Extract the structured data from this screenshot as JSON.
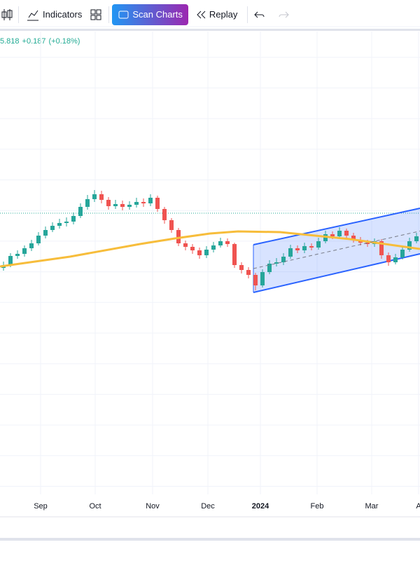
{
  "toolbar": {
    "indicators": "Indicators",
    "scan": "Scan Charts",
    "replay": "Replay"
  },
  "legend": {
    "price": "5.818",
    "change": "+0.187",
    "change_pct": "(+0.18%)"
  },
  "chart_data": {
    "type": "candlestick",
    "xlim": [
      0,
      60
    ],
    "ylim": [
      0,
      65.5
    ],
    "xticks": [
      {
        "value": 5.8,
        "label": "Sep"
      },
      {
        "value": 13.6,
        "label": "Oct"
      },
      {
        "value": 21.8,
        "label": "Nov"
      },
      {
        "value": 29.7,
        "label": "Dec"
      },
      {
        "value": 37.2,
        "label": "2024"
      },
      {
        "value": 45.3,
        "label": "Feb"
      },
      {
        "value": 53.1,
        "label": "Mar"
      },
      {
        "value": 59.8,
        "label": "A"
      }
    ],
    "up_color": "#26a69a",
    "down_color": "#ef5350",
    "open": [
      31.8,
      32.2,
      33.5,
      33.8,
      34.6,
      35.3,
      36.4,
      37.2,
      37.8,
      38.2,
      38.4,
      39.2,
      40.5,
      41.6,
      42.3,
      41.5,
      40.6,
      40.9,
      40.5,
      40.8,
      41.2,
      41.0,
      41.8,
      40.2,
      38.6,
      37.2,
      35.3,
      34.8,
      34.3,
      33.6,
      34.4,
      35.0,
      35.6,
      35.2,
      32.2,
      31.5,
      30.8,
      29.3,
      31.2,
      32.4,
      32.6,
      33.4,
      34.6,
      34.3,
      34.9,
      34.7,
      35.6,
      36.6,
      36.3,
      37.1,
      36.4,
      35.8,
      35.4,
      35.2,
      35.6,
      33.6,
      32.6,
      33.3,
      34.4,
      35.6
    ],
    "high": [
      32.7,
      33.9,
      34.3,
      35.0,
      35.8,
      36.9,
      37.7,
      38.3,
      38.8,
      39.0,
      39.7,
      41.0,
      42.2,
      42.9,
      42.8,
      41.9,
      41.5,
      41.4,
      41.3,
      41.8,
      41.7,
      42.3,
      42.1,
      40.5,
      38.9,
      37.5,
      35.7,
      35.2,
      34.7,
      34.9,
      35.5,
      36.1,
      36.0,
      35.4,
      32.6,
      31.9,
      31.1,
      31.6,
      32.9,
      33.2,
      33.9,
      35.1,
      35.0,
      35.4,
      35.3,
      36.1,
      37.1,
      37.0,
      37.6,
      37.4,
      36.8,
      36.2,
      35.8,
      36.0,
      35.9,
      34.0,
      33.8,
      34.9,
      36.1,
      36.8
    ],
    "low": [
      31.4,
      31.9,
      33.1,
      33.4,
      34.2,
      35.0,
      36.0,
      36.9,
      37.4,
      37.7,
      38.0,
      38.9,
      40.1,
      41.2,
      41.0,
      40.1,
      40.2,
      40.0,
      40.1,
      40.4,
      40.5,
      40.6,
      39.8,
      38.1,
      36.8,
      34.9,
      34.3,
      33.8,
      33.1,
      33.2,
      34.0,
      34.7,
      34.8,
      31.8,
      31.0,
      30.3,
      28.6,
      29.0,
      30.9,
      32.0,
      32.2,
      33.1,
      33.9,
      33.9,
      34.3,
      34.4,
      35.3,
      35.9,
      36.0,
      36.0,
      35.4,
      35.0,
      34.8,
      34.8,
      33.1,
      32.1,
      32.3,
      33.0,
      34.1,
      35.3
    ],
    "close": [
      32.2,
      33.5,
      33.8,
      34.6,
      35.3,
      36.4,
      37.2,
      37.8,
      38.2,
      38.4,
      39.2,
      40.5,
      41.6,
      42.3,
      41.5,
      40.6,
      40.9,
      40.5,
      40.8,
      41.2,
      41.0,
      41.8,
      40.2,
      38.6,
      37.2,
      35.3,
      34.8,
      34.3,
      33.6,
      34.4,
      35.0,
      35.6,
      35.2,
      32.2,
      31.5,
      30.8,
      29.3,
      31.2,
      32.4,
      32.6,
      33.4,
      34.6,
      34.3,
      34.9,
      34.7,
      35.6,
      36.6,
      36.3,
      37.1,
      36.4,
      35.8,
      35.4,
      35.2,
      35.6,
      33.6,
      32.6,
      33.3,
      34.4,
      35.6,
      36.3
    ],
    "moving_average": {
      "color": "#f7bd3b",
      "x": [
        0,
        10,
        20,
        25,
        30,
        34,
        40,
        45,
        50,
        55,
        60
      ],
      "values": [
        32,
        33.4,
        35.2,
        36,
        36.7,
        37,
        36.9,
        36.4,
        35.9,
        35.2,
        34.5
      ]
    },
    "channel": {
      "color": "#2962ff",
      "x": [
        36.2,
        60
      ],
      "upper": [
        35.1,
        40.3
      ],
      "lower": [
        28.3,
        33.8
      ]
    },
    "price_line": 39.6
  }
}
